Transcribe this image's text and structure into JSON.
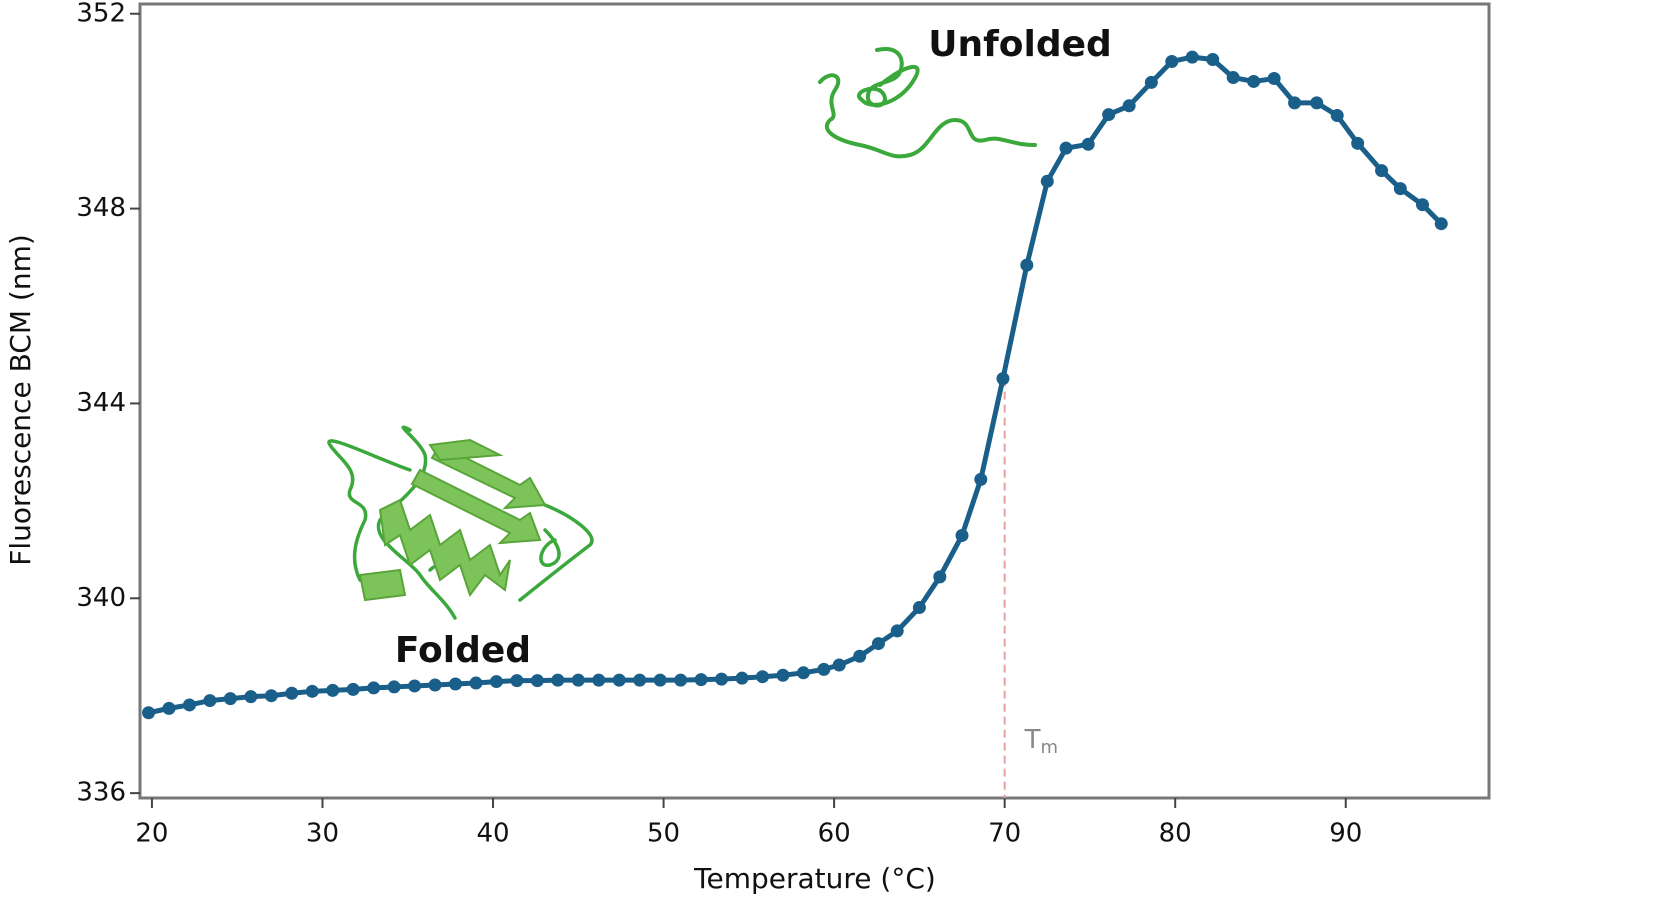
{
  "chart_data": {
    "type": "line",
    "x_label": "Temperature (°C)",
    "y_label": "Fluorescence BCM (nm)",
    "xlim": [
      19.3,
      98.4
    ],
    "ylim": [
      335.9,
      352.2
    ],
    "xticks": [
      20,
      30,
      40,
      50,
      60,
      70,
      80,
      90
    ],
    "yticks": [
      336,
      340,
      344,
      348,
      352
    ],
    "series": [
      {
        "color": "#1a5f8a",
        "x": [
          19.8,
          21.0,
          22.2,
          23.4,
          24.6,
          25.8,
          27.0,
          28.2,
          29.4,
          30.6,
          31.8,
          33.0,
          34.2,
          35.4,
          36.6,
          37.8,
          39.0,
          40.2,
          41.4,
          42.6,
          43.8,
          45.0,
          46.2,
          47.4,
          48.6,
          49.8,
          51.0,
          52.2,
          53.4,
          54.6,
          55.8,
          57.0,
          58.2,
          59.4,
          60.3,
          61.5,
          62.6,
          63.7,
          65.0,
          66.2,
          67.5,
          68.6,
          69.9,
          71.3,
          72.5,
          73.6,
          74.9,
          76.1,
          77.3,
          78.6,
          79.8,
          81.0,
          82.2,
          83.4,
          84.6,
          85.8,
          87.0,
          88.3,
          89.5,
          90.7,
          92.1,
          93.2,
          94.5,
          95.6
        ],
        "values": [
          337.65,
          337.74,
          337.81,
          337.9,
          337.94,
          337.98,
          338.0,
          338.05,
          338.09,
          338.11,
          338.13,
          338.16,
          338.18,
          338.2,
          338.22,
          338.24,
          338.26,
          338.29,
          338.31,
          338.31,
          338.32,
          338.32,
          338.32,
          338.32,
          338.32,
          338.32,
          338.32,
          338.33,
          338.34,
          338.36,
          338.39,
          338.42,
          338.47,
          338.54,
          338.63,
          338.81,
          339.07,
          339.33,
          339.81,
          340.44,
          341.29,
          342.44,
          344.51,
          346.84,
          348.56,
          349.24,
          349.32,
          349.93,
          350.11,
          350.59,
          351.02,
          351.11,
          351.06,
          350.69,
          350.61,
          350.67,
          350.17,
          350.17,
          349.91,
          349.34,
          348.78,
          348.41,
          348.08,
          347.69
        ]
      }
    ],
    "annotations": {
      "unfolded": "Unfolded",
      "folded": "Folded"
    },
    "tm": {
      "text": "T",
      "sub": "m",
      "x": 70,
      "y": 344.51,
      "color": "#e8a0a0"
    }
  }
}
